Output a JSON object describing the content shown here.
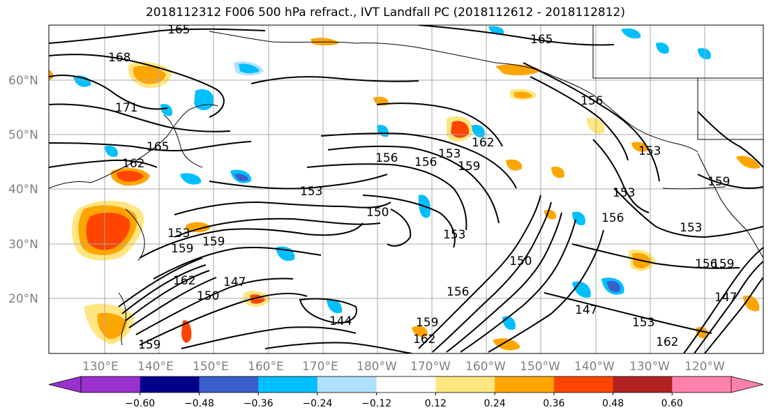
{
  "title": "2018112312 F006 500 hPa refract., IVT Landfall PC (2018112612 - 2018112812)",
  "latitude_labels": [
    "60°N",
    "50°N",
    "40°N",
    "30°N",
    "20°N"
  ],
  "longitude_labels": [
    "130°E",
    "140°E",
    "150°E",
    "160°E",
    "170°E",
    "180°W",
    "170°W",
    "160°W",
    "150°W",
    "140°W",
    "130°W",
    "120°W"
  ],
  "contour_labels": [
    "165",
    "168",
    "171",
    "165",
    "162",
    "153",
    "150",
    "153",
    "159",
    "159",
    "153",
    "162",
    "147",
    "144",
    "150",
    "159",
    "156",
    "156",
    "153",
    "159",
    "162",
    "165",
    "156",
    "153",
    "156",
    "153",
    "159",
    "153",
    "150",
    "156",
    "147",
    "153",
    "162",
    "159",
    "147",
    "159",
    "156",
    "162"
  ],
  "colorbar": {
    "ticks": [
      "−0.60",
      "−0.48",
      "−0.36",
      "−0.24",
      "−0.12",
      "0.12",
      "0.24",
      "0.36",
      "0.48",
      "0.60"
    ],
    "colors": [
      "#9932cc",
      "#00008b",
      "#3a5fcd",
      "#00bfff",
      "#b0e2ff",
      "#ffffff",
      "#ffe680",
      "#ffa500",
      "#ff4500",
      "#b22222",
      "#ff82ab"
    ]
  },
  "shading_colors": {
    "positive_light": "#ffe680",
    "positive_mid": "#ffa500",
    "positive_strong": "#ff4500",
    "negative_light": "#b0e2ff",
    "negative_mid": "#00bfff",
    "negative_strong": "#3a5fcd"
  }
}
